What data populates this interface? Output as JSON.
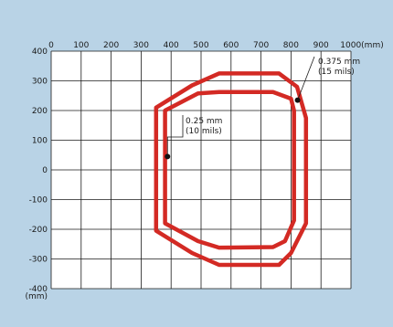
{
  "chart_data": {
    "type": "scatter",
    "x_unit": "(mm)",
    "y_unit": "(mm)",
    "xlim": [
      0,
      1000
    ],
    "ylim": [
      -400,
      400
    ],
    "x_ticks": [
      0,
      100,
      200,
      300,
      400,
      500,
      600,
      700,
      800,
      900,
      1000
    ],
    "x_tick_labels": [
      "0",
      "100",
      "200",
      "300",
      "400",
      "500",
      "600",
      "700",
      "800",
      "900",
      "1000(mm)"
    ],
    "y_ticks": [
      400,
      300,
      200,
      100,
      0,
      -100,
      -200,
      -300,
      -400
    ],
    "y_tick_labels": [
      "400",
      "300",
      "200",
      "100",
      "0",
      "-100",
      "-200",
      "-300",
      "-400"
    ],
    "y_unit_label": "(mm)",
    "grid": true,
    "regions": [
      {
        "name": "0.375 mm",
        "label_lines": [
          "0.375 mm",
          "(15 mils)"
        ],
        "color": "#d32a24",
        "points": [
          [
            350,
            210
          ],
          [
            470,
            285
          ],
          [
            560,
            325
          ],
          [
            760,
            325
          ],
          [
            820,
            280
          ],
          [
            850,
            175
          ],
          [
            850,
            -180
          ],
          [
            800,
            -280
          ],
          [
            760,
            -320
          ],
          [
            560,
            -320
          ],
          [
            470,
            -280
          ],
          [
            350,
            -205
          ]
        ],
        "marker": [
          822,
          235
        ]
      },
      {
        "name": "0.25 mm",
        "label_lines": [
          "0.25 mm",
          "(10 mils)"
        ],
        "color": "#d32a24",
        "points": [
          [
            380,
            200
          ],
          [
            490,
            258
          ],
          [
            560,
            262
          ],
          [
            740,
            262
          ],
          [
            800,
            240
          ],
          [
            810,
            200
          ],
          [
            810,
            -170
          ],
          [
            780,
            -240
          ],
          [
            740,
            -260
          ],
          [
            560,
            -262
          ],
          [
            490,
            -240
          ],
          [
            380,
            -180
          ]
        ],
        "marker": [
          388,
          45
        ]
      }
    ]
  },
  "colors": {
    "background": "#b9d3e6",
    "plot_area": "#ffffff",
    "grid": "#1a1a1a",
    "curve": "#d32a24"
  }
}
